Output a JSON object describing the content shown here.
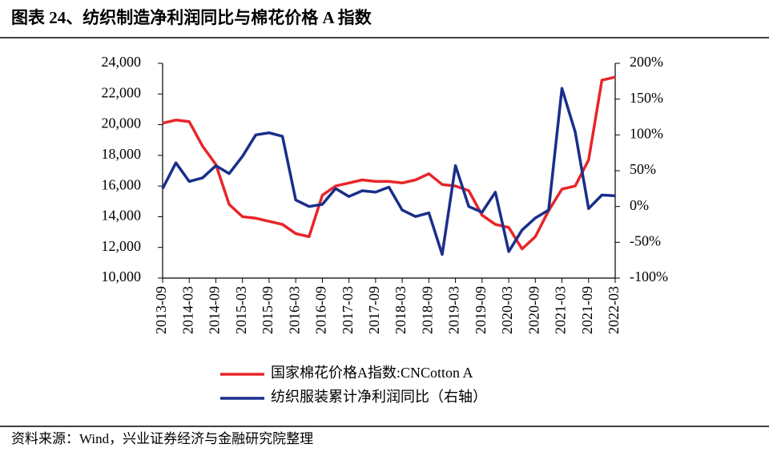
{
  "chart_data": {
    "type": "line",
    "title": "图表 24、纺织制造净利润同比与棉花价格 A 指数",
    "source": "资料来源：Wind，兴业证券经济与金融研究院整理",
    "categories": [
      "2013-09",
      null,
      "2014-03",
      null,
      "2014-09",
      null,
      "2015-03",
      null,
      "2015-09",
      null,
      "2016-03",
      null,
      "2016-09",
      null,
      "2017-03",
      null,
      "2017-09",
      null,
      "2018-03",
      null,
      "2018-09",
      null,
      "2019-03",
      null,
      "2019-09",
      null,
      "2020-03",
      null,
      "2020-09",
      null,
      "2021-03",
      null,
      "2021-09",
      null,
      "2022-03"
    ],
    "series": [
      {
        "name": "国家棉花价格A指数:CNCotton A",
        "color": "#e8262a",
        "values": [
          20100,
          20300,
          20200,
          18600,
          17400,
          14800,
          14000,
          13900,
          13700,
          13500,
          12900,
          12700,
          15400,
          16000,
          16200,
          16400,
          16300,
          16300,
          16200,
          16400,
          16800,
          16100,
          16000,
          15700,
          14100,
          13500,
          13300,
          11900,
          12700,
          14400,
          15800,
          16000,
          17700,
          22900,
          23100
        ]
      },
      {
        "name": "纺织服装累计净利润同比（右轴）",
        "color": "#1a2f8a",
        "axis": "y2",
        "values": [
          25,
          61,
          35,
          40,
          57,
          46,
          70,
          100,
          103,
          98,
          9,
          0,
          3,
          25,
          14,
          22,
          20,
          27,
          -5,
          -14,
          -9,
          -67,
          57,
          0,
          -8,
          20,
          -63,
          -33,
          -16,
          -5,
          165,
          104,
          -3,
          16,
          15
        ]
      }
    ],
    "ylim": [
      10000,
      24000
    ],
    "yticks": [
      {
        "value": 10000,
        "label": "10,000"
      },
      {
        "value": 12000,
        "label": "12,000"
      },
      {
        "value": 14000,
        "label": "14,000"
      },
      {
        "value": 16000,
        "label": "16,000"
      },
      {
        "value": 18000,
        "label": "18,000"
      },
      {
        "value": 20000,
        "label": "20,000"
      },
      {
        "value": 22000,
        "label": "22,000"
      },
      {
        "value": 24000,
        "label": "24,000"
      }
    ],
    "y2lim": [
      -100,
      200
    ],
    "y2ticks": [
      {
        "value": -100,
        "label": "-100%"
      },
      {
        "value": -50,
        "label": "-50%"
      },
      {
        "value": 0,
        "label": "0%"
      },
      {
        "value": 50,
        "label": "50%"
      },
      {
        "value": 100,
        "label": "100%"
      },
      {
        "value": 150,
        "label": "150%"
      },
      {
        "value": 200,
        "label": "200%"
      }
    ],
    "grid": false,
    "legend": "bottom"
  }
}
